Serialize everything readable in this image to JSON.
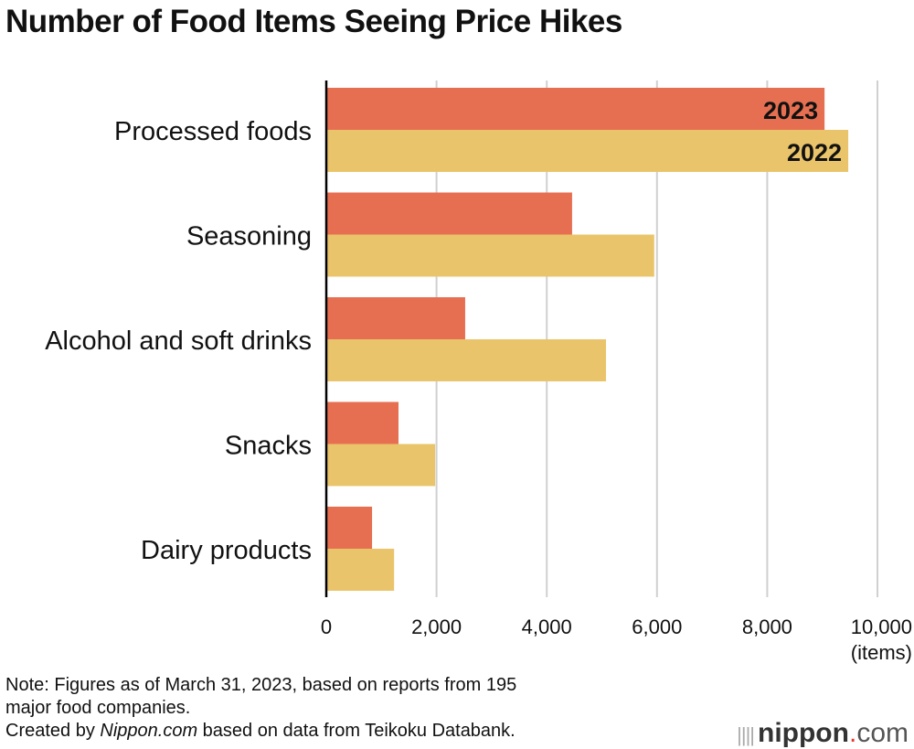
{
  "chart_data": {
    "type": "bar",
    "orientation": "horizontal",
    "title": "Number of Food Items Seeing Price Hikes",
    "categories": [
      "Processed foods",
      "Seasoning",
      "Alcohol and soft drinks",
      "Snacks",
      "Dairy products"
    ],
    "series": [
      {
        "name": "2023",
        "color": "#E76F51",
        "values": [
          9040,
          4460,
          2520,
          1310,
          830
        ]
      },
      {
        "name": "2022",
        "color": "#E9C46A",
        "values": [
          9470,
          5950,
          5075,
          1975,
          1230
        ]
      }
    ],
    "xlabel": "(items)",
    "xlim": [
      0,
      10000
    ],
    "xticks": [
      0,
      2000,
      4000,
      6000,
      8000,
      10000
    ],
    "xtick_labels": [
      "0",
      "2,000",
      "4,000",
      "6,000",
      "8,000",
      "10,000"
    ],
    "grid": true,
    "legend": "inline labels on first category bars"
  },
  "note_lines": [
    "Note: Figures as of March 31, 2023, based on reports from 195",
    "major food companies."
  ],
  "credit": {
    "prefix": "Created by ",
    "source": "Nippon.com",
    "suffix": " based on data from Teikoku Databank."
  },
  "logo": {
    "name": "nippon",
    "dot": ".",
    "tld": "com"
  }
}
